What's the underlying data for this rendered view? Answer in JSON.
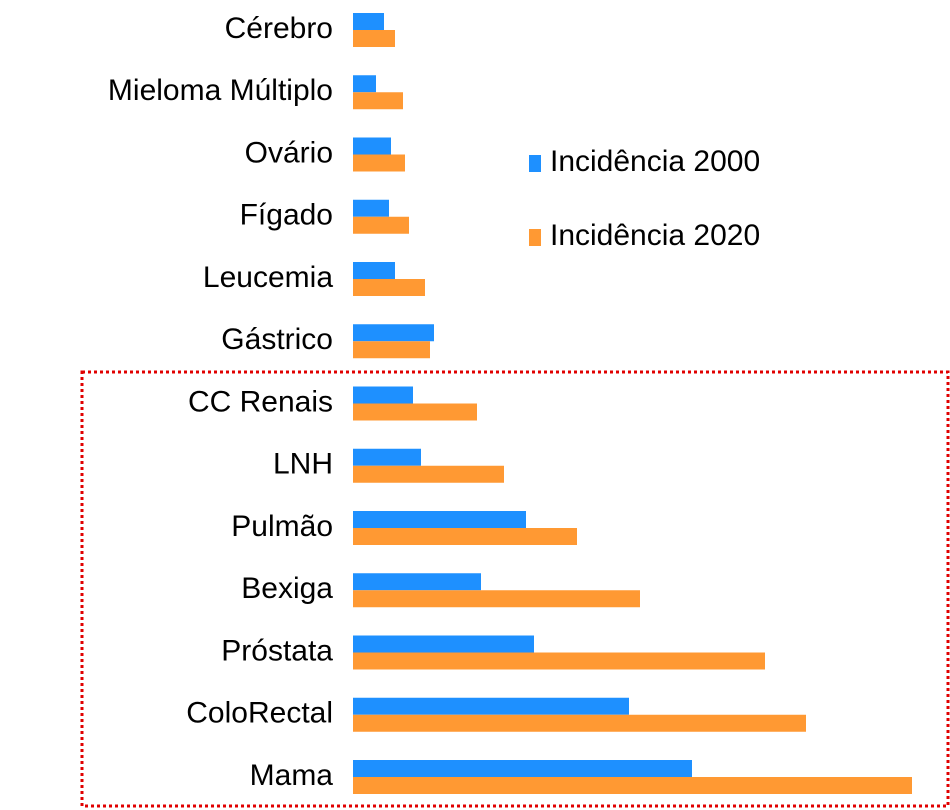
{
  "chart_data": {
    "type": "bar",
    "orientation": "horizontal",
    "categories": [
      "Cérebro",
      "Mieloma Múltiplo",
      "Ovário",
      "Fígado",
      "Leucemia",
      "Gástrico",
      "CC Renais",
      "LNH",
      "Pulmão",
      "Bexiga",
      "Próstata",
      "ColoRectal",
      "Mama"
    ],
    "series": [
      {
        "name": "Incidência 2000",
        "color": "#1E90FF",
        "values": [
          31,
          23,
          38,
          36,
          42,
          81,
          60,
          68,
          173,
          128,
          181,
          276,
          339
        ]
      },
      {
        "name": "Incidência 2020",
        "color": "#FF9933",
        "values": [
          42,
          50,
          52,
          56,
          72,
          77,
          124,
          151,
          224,
          287,
          412,
          453,
          559
        ]
      }
    ]
  }
}
